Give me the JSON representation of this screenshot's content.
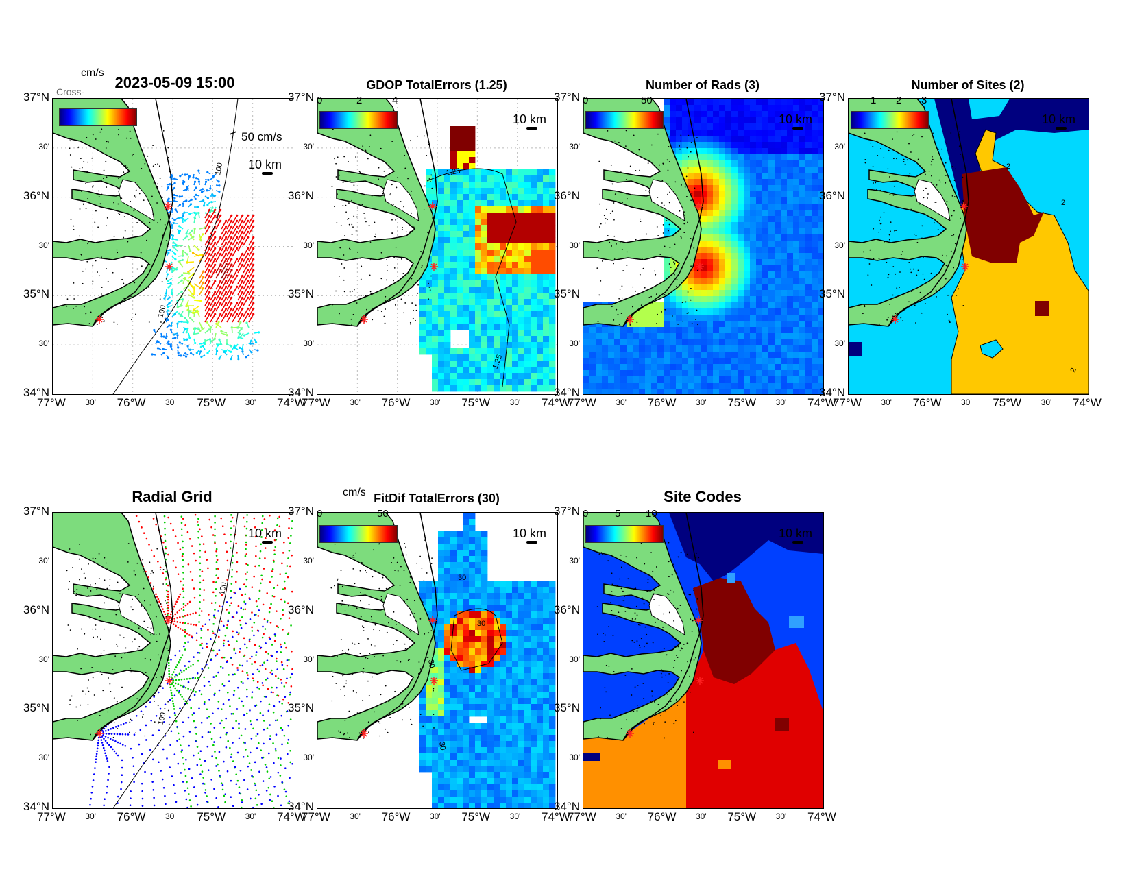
{
  "figure": {
    "timestamp": "2023-05-09 15:00",
    "overlap_label": "Cross-Shelf"
  },
  "axes": {
    "lat_labels": [
      "37°N",
      "30'",
      "36°N",
      "30'",
      "35°N",
      "30'",
      "34°N"
    ],
    "lon_labels": [
      "77°W",
      "30'",
      "76°W",
      "30'",
      "75°W",
      "30'",
      "74°W"
    ]
  },
  "panels": [
    {
      "id": "totals",
      "title": "",
      "units": "cm/s",
      "cbar_ticks": [],
      "scale_text": "10 km",
      "ref_vector": "50 cm/s",
      "contour": "100"
    },
    {
      "id": "gdop",
      "title": "GDOP TotalErrors (1.25)",
      "units": "",
      "cbar_ticks": [
        "0",
        "2",
        "4"
      ],
      "scale_text": "10 km",
      "contour": "1.25"
    },
    {
      "id": "rads",
      "title": "Number of Rads (3)",
      "units": "",
      "cbar_ticks": [
        "0",
        "50"
      ],
      "scale_text": "10 km"
    },
    {
      "id": "sites",
      "title": "Number of Sites (2)",
      "units": "",
      "cbar_ticks": [
        "1",
        "2",
        "3"
      ],
      "scale_text": "10 km",
      "contour": "2"
    },
    {
      "id": "radial-grid",
      "title": "Radial Grid",
      "units": "",
      "cbar_ticks": [],
      "scale_text": "10 km",
      "contour": "100"
    },
    {
      "id": "fitdif",
      "title": "FitDif TotalErrors (30)",
      "units": "cm/s",
      "cbar_ticks": [
        "0",
        "50"
      ],
      "scale_text": "10 km",
      "contour": "30"
    },
    {
      "id": "site-codes",
      "title": "Site Codes",
      "units": "",
      "cbar_ticks": [
        "0",
        "5",
        "10"
      ],
      "scale_text": "10 km"
    }
  ],
  "colors": {
    "land": "#7ddc7d",
    "site_marker": "#ff2020",
    "grid_red": "#ff0000",
    "grid_green": "#00cc00",
    "grid_blue": "#0000ff",
    "sites_cyan": "#00d8ff",
    "sites_yellow": "#ffc800",
    "sites_darkred": "#800000",
    "codes_orange": "#ff9000",
    "codes_red": "#e00000"
  }
}
